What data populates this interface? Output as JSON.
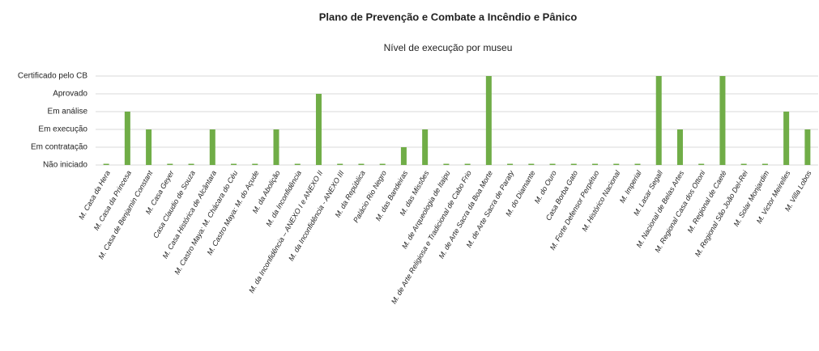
{
  "chart_data": {
    "type": "bar",
    "title": "Plano de Prevenção e Combate a Incêndio e Pânico",
    "subtitle": "Nível de execução por museu",
    "categories": [
      "M. Casa da Hera",
      "M. Casa da Princesa",
      "M. Casa de Benjamin Constant",
      "M. Casa Geyer",
      "Casa Claudio de Souza",
      "M. Casa Histórica de Alcântara",
      "M. Castro Maya: M. Chácara do Céu",
      "M. Castro Maya: M. do Açude",
      "M. da Abolição",
      "M. da Inconfidência",
      "M. da Inconfidência – ANEXO I e ANEXO II",
      "M. da Inconfidência - ANEXO III",
      "M. da República",
      "Palácio Rio Negro",
      "M. das Bandeiras",
      "M. das Missões",
      "M. de Arqueologia de Itaipu",
      "M. de Arte Religiosa e Tradicional de Cabo Frio",
      "M. de Arte Sacra da Boa Morte",
      "M. de Arte Sacra de Paraty",
      "M. do Diamante",
      "M. do Ouro",
      "Casa Borba Gato",
      "M. Forte Defensor Perpétuo",
      "M. Histórico Nacional",
      "M. Imperial",
      "M. Lasar Segall",
      "M. Nacional de Belas Artes",
      "M. Regional Casa dos Ottoni",
      "M. Regional de Caeté",
      "M. Regional São João Del-Rei",
      "M. Solar Monjardim",
      "M. Victor Meirelles",
      "M. Villa Lobos"
    ],
    "values": [
      0,
      3,
      2,
      0,
      0,
      2,
      0,
      0,
      2,
      0,
      4,
      0,
      0,
      0,
      1,
      2,
      0,
      0,
      5,
      0,
      0,
      0,
      0,
      0,
      0,
      0,
      5,
      2,
      0,
      5,
      0,
      0,
      3,
      2
    ],
    "color": "#70ad47",
    "ylim": [
      0,
      5
    ],
    "yticks": [
      {
        "value": 0,
        "label": "Não iniciado"
      },
      {
        "value": 1,
        "label": "Em contratação"
      },
      {
        "value": 2,
        "label": "Em execução"
      },
      {
        "value": 3,
        "label": "Em análise"
      },
      {
        "value": 4,
        "label": "Aprovado"
      },
      {
        "value": 5,
        "label": "Certificado pelo CB"
      }
    ],
    "grid": true
  }
}
